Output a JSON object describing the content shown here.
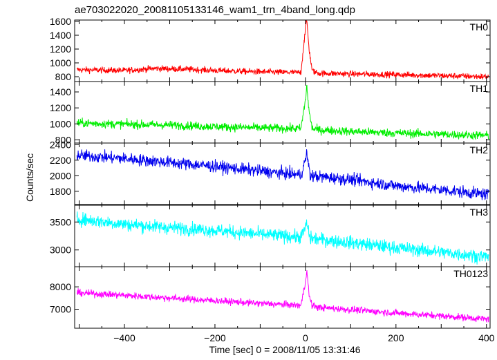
{
  "chart_data": {
    "type": "line",
    "title": "ae703022020_20081105133146_wam1_trn_4band_long.qdp",
    "xlabel": "Time [sec] 0 = 2008/11/05 13:31:46",
    "ylabel": "Counts/sec",
    "xlim": [
      -510,
      408
    ],
    "x_ticks": [
      -400,
      -200,
      0,
      200,
      400
    ],
    "x_tick_labels": [
      "−400",
      "−200",
      "0",
      "200",
      "400"
    ],
    "panels": [
      {
        "name": "TH0",
        "color": "#ff0000",
        "ylim": [
          730,
          1620
        ],
        "y_ticks": [
          800,
          1000,
          1200,
          1400,
          1600
        ],
        "y_tick_labels": [
          "800",
          "1000",
          "1200",
          "1400",
          "1600"
        ],
        "x": [
          -500,
          -400,
          -330,
          -250,
          -200,
          -100,
          -10,
          0,
          3,
          8,
          15,
          30,
          100,
          200,
          300,
          400
        ],
        "y": [
          900,
          890,
          920,
          905,
          890,
          870,
          860,
          1500,
          1620,
          1200,
          880,
          850,
          840,
          830,
          815,
          800
        ],
        "noise": 32
      },
      {
        "name": "TH1",
        "color": "#00ee00",
        "ylim": [
          760,
          1530
        ],
        "y_ticks": [
          800,
          1000,
          1200,
          1400
        ],
        "y_tick_labels": [
          "800",
          "1000",
          "1200",
          "1400"
        ],
        "x": [
          -500,
          -400,
          -300,
          -200,
          -100,
          -10,
          0,
          3,
          8,
          15,
          30,
          100,
          200,
          300,
          400
        ],
        "y": [
          1010,
          995,
          985,
          965,
          950,
          940,
          1300,
          1480,
          1150,
          940,
          925,
          905,
          885,
          870,
          855
        ],
        "noise": 38
      },
      {
        "name": "TH2",
        "color": "#0000ee",
        "ylim": [
          1630,
          2420
        ],
        "y_ticks": [
          1800,
          2000,
          2200,
          2400
        ],
        "y_tick_labels": [
          "1800",
          "2000",
          "2200",
          "2400"
        ],
        "x": [
          -500,
          -400,
          -300,
          -200,
          -100,
          -10,
          0,
          3,
          10,
          100,
          200,
          300,
          400
        ],
        "y": [
          2260,
          2220,
          2170,
          2120,
          2060,
          2010,
          2200,
          2300,
          2000,
          1950,
          1870,
          1820,
          1760
        ],
        "noise": 55
      },
      {
        "name": "TH3",
        "color": "#00ffff",
        "ylim": [
          2700,
          3800
        ],
        "y_ticks": [
          3000,
          3500
        ],
        "y_tick_labels": [
          "3000",
          "3500"
        ],
        "x": [
          -500,
          -400,
          -300,
          -200,
          -100,
          -10,
          0,
          3,
          10,
          100,
          200,
          300,
          400
        ],
        "y": [
          3550,
          3460,
          3400,
          3350,
          3280,
          3230,
          3400,
          3480,
          3210,
          3130,
          3040,
          2960,
          2880
        ],
        "noise": 85
      },
      {
        "name": "TH0123",
        "color": "#ff00ff",
        "ylim": [
          6150,
          8900
        ],
        "y_ticks": [
          7000,
          8000
        ],
        "y_tick_labels": [
          "7000",
          "8000"
        ],
        "x": [
          -500,
          -400,
          -300,
          -200,
          -100,
          -10,
          0,
          3,
          8,
          15,
          30,
          100,
          200,
          300,
          400
        ],
        "y": [
          7730,
          7620,
          7500,
          7380,
          7260,
          7170,
          8200,
          8850,
          7600,
          7150,
          7080,
          6980,
          6830,
          6700,
          6560
        ],
        "noise": 110
      }
    ]
  }
}
